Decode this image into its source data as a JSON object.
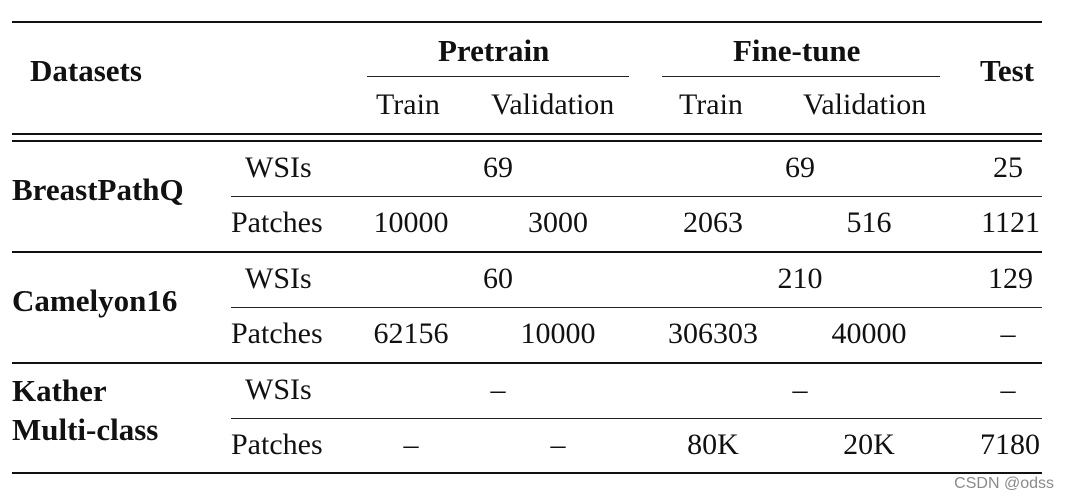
{
  "header": {
    "datasets": "Datasets",
    "pretrain": "Pretrain",
    "finetune": "Fine-tune",
    "test": "Test",
    "train1": "Train",
    "validation1": "Validation",
    "train2": "Train",
    "validation2": "Validation"
  },
  "rows": {
    "breastpathq": {
      "name": "BreastPathQ",
      "wsis": {
        "label": "WSIs",
        "pretrain": "69",
        "finetune": "69",
        "test": "25"
      },
      "patches": {
        "label": "Patches",
        "pre_train": "10000",
        "pre_val": "3000",
        "ft_train": "2063",
        "ft_val": "516",
        "test": "1121"
      }
    },
    "camelyon16": {
      "name": "Camelyon16",
      "wsis": {
        "label": "WSIs",
        "pretrain": "60",
        "finetune": "210",
        "test": "129"
      },
      "patches": {
        "label": "Patches",
        "pre_train": "62156",
        "pre_val": "10000",
        "ft_train": "306303",
        "ft_val": "40000",
        "test": "–"
      }
    },
    "kather": {
      "name_line1": "Kather",
      "name_line2": "Multi-class",
      "wsis": {
        "label": "WSIs",
        "pretrain": "–",
        "finetune": "–",
        "test": "–"
      },
      "patches": {
        "label": "Patches",
        "pre_train": "–",
        "pre_val": "–",
        "ft_train": "80K",
        "ft_val": "20K",
        "test": "7180"
      }
    }
  },
  "watermark": "CSDN @odss"
}
